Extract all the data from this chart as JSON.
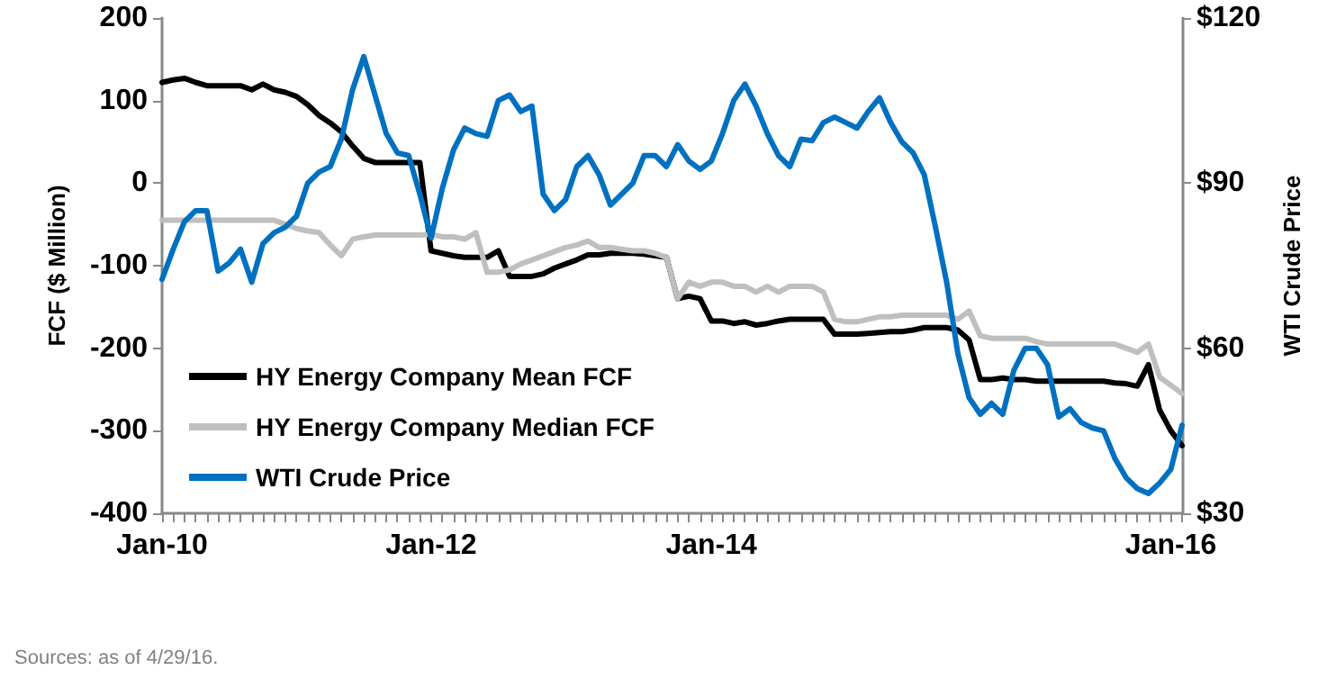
{
  "chart_data": {
    "type": "line",
    "categories": [
      "Jan-10",
      null,
      null,
      null,
      null,
      null,
      null,
      null,
      null,
      null,
      null,
      null,
      null,
      null,
      null,
      null,
      null,
      null,
      null,
      null,
      null,
      null,
      null,
      null,
      "Jan-12",
      null,
      null,
      null,
      null,
      null,
      null,
      null,
      null,
      null,
      null,
      null,
      null,
      null,
      null,
      null,
      null,
      null,
      null,
      null,
      null,
      null,
      null,
      null,
      null,
      "Jan-14",
      null,
      null,
      null,
      null,
      null,
      null,
      null,
      null,
      null,
      null,
      null,
      null,
      null,
      null,
      null,
      null,
      null,
      null,
      null,
      null,
      null,
      null,
      null,
      null,
      null,
      null,
      null,
      null,
      null,
      null,
      null,
      null,
      null,
      null,
      null,
      null,
      null,
      null,
      null,
      null,
      "Jan-16",
      null
    ],
    "series": [
      {
        "name": "HY Energy Company Mean FCF",
        "color": "#000000",
        "values": [
          122,
          125,
          127,
          122,
          118,
          118,
          118,
          118,
          113,
          120,
          113,
          110,
          105,
          95,
          82,
          73,
          62,
          45,
          30,
          25,
          25,
          25,
          25,
          25,
          -82,
          -85,
          -88,
          -90,
          -90,
          -90,
          -82,
          -113,
          -113,
          -113,
          -110,
          -103,
          -98,
          -93,
          -87,
          -87,
          -85,
          -85,
          -85,
          -86,
          -88,
          -90,
          -140,
          -137,
          -140,
          -167,
          -167,
          -170,
          -168,
          -172,
          -170,
          -167,
          -165,
          -165,
          -165,
          -165,
          -183,
          -183,
          -183,
          -182,
          -181,
          -180,
          -180,
          -178,
          -175,
          -175,
          -175,
          -178,
          -190,
          -238,
          -238,
          -236,
          -238,
          -238,
          -240,
          -240,
          -240,
          -240,
          -240,
          -240,
          -240,
          -242,
          -243,
          -246,
          -220,
          -275,
          -300,
          -318
        ]
      },
      {
        "name": "HY Energy Company Median FCF",
        "color": "#bfbfbf",
        "values": [
          -45,
          -45,
          -45,
          -45,
          -45,
          -45,
          -45,
          -45,
          -45,
          -45,
          -45,
          -50,
          -55,
          -58,
          -60,
          -75,
          -88,
          -68,
          -65,
          -63,
          -63,
          -63,
          -63,
          -63,
          -62,
          -65,
          -65,
          -68,
          -60,
          -108,
          -108,
          -105,
          -98,
          -93,
          -88,
          -83,
          -78,
          -75,
          -70,
          -78,
          -78,
          -80,
          -82,
          -82,
          -85,
          -90,
          -140,
          -120,
          -125,
          -120,
          -120,
          -125,
          -125,
          -132,
          -125,
          -132,
          -125,
          -125,
          -125,
          -132,
          -165,
          -168,
          -168,
          -165,
          -162,
          -162,
          -160,
          -160,
          -160,
          -160,
          -160,
          -165,
          -155,
          -185,
          -188,
          -188,
          -188,
          -188,
          -192,
          -195,
          -195,
          -195,
          -195,
          -195,
          -195,
          -195,
          -200,
          -205,
          -195,
          -235,
          -245,
          -255
        ]
      },
      {
        "name": "WTI Crude Price",
        "color": "#0070c0",
        "axis": "y2",
        "values": [
          72.5,
          78,
          83,
          85,
          85,
          74,
          75.5,
          78,
          72,
          79,
          81,
          82,
          84,
          90,
          92,
          93,
          98,
          107,
          113,
          106,
          99,
          95.5,
          95,
          88,
          80,
          89,
          96,
          100,
          99,
          98.5,
          105,
          106,
          103,
          104,
          88,
          85,
          87,
          93,
          95,
          91.5,
          86,
          88,
          90,
          95,
          95,
          93,
          97,
          94,
          92.5,
          94,
          99,
          105,
          108,
          104,
          99,
          95,
          93,
          98,
          97.7,
          101,
          102,
          101,
          100,
          103,
          105.5,
          101,
          97.5,
          95.5,
          91.5,
          82,
          72,
          59,
          51,
          48,
          50,
          48,
          56,
          60,
          60,
          57,
          47.5,
          49,
          46.5,
          45.5,
          45,
          40,
          36.5,
          34.5,
          33.6,
          35.5,
          38,
          46
        ]
      }
    ],
    "ylabel": "FCF ($ Million)",
    "y2label": "WTI Crude Price",
    "ylim": [
      -400,
      200
    ],
    "yticks": [
      -400,
      -300,
      -200,
      -100,
      0,
      100,
      200
    ],
    "y2lim": [
      30,
      120
    ],
    "y2ticks": [
      {
        "value": 30,
        "label": "$30"
      },
      {
        "value": 60,
        "label": "$60"
      },
      {
        "value": 90,
        "label": "$90"
      },
      {
        "value": 120,
        "label": "$120"
      }
    ],
    "annotations": [
      "Sources: as of 4/29/16."
    ],
    "legend": "bottom left",
    "marker": "none",
    "line_style": "solid",
    "grid": false
  }
}
